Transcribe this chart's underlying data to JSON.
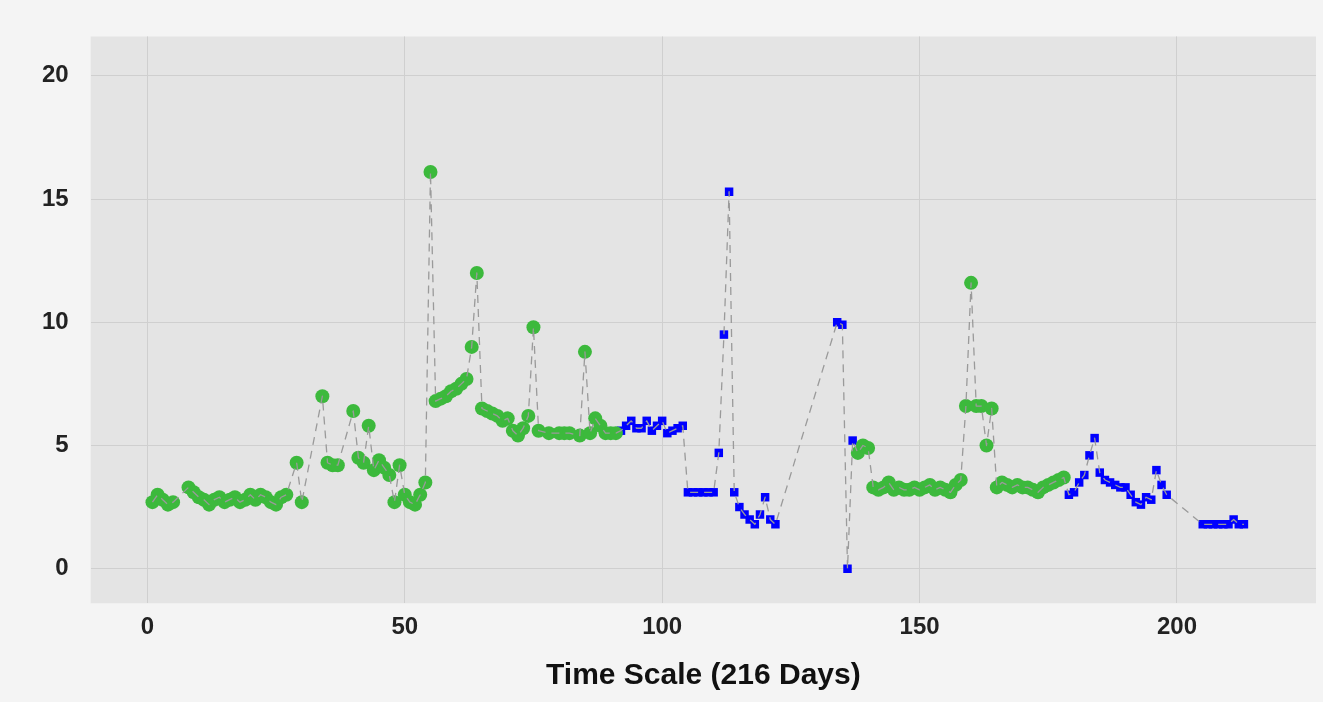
{
  "chart_data": {
    "type": "scatter",
    "xlabel": "Time Scale (216 Days)",
    "xlim": [
      -11,
      227
    ],
    "ylim": [
      -1.4,
      21.6
    ],
    "xticks": [
      0,
      50,
      100,
      150,
      200
    ],
    "yticks": [
      0,
      5,
      10,
      15,
      20
    ],
    "grid": true,
    "legend": false,
    "series": [
      {
        "type": "line",
        "color": "#9a9a9a",
        "line_style": "dashed",
        "marker": "none",
        "x": [
          1,
          2,
          3,
          4,
          5,
          8,
          9,
          10,
          11,
          12,
          13,
          14,
          15,
          16,
          17,
          18,
          19,
          20,
          21,
          22,
          23,
          24,
          25,
          26,
          27,
          29,
          30,
          34,
          35,
          36,
          37,
          40,
          41,
          42,
          43,
          44,
          45,
          46,
          47,
          48,
          49,
          50,
          51,
          52,
          53,
          54,
          55,
          56,
          57,
          58,
          59,
          60,
          61,
          62,
          63,
          64,
          65,
          66,
          67,
          68,
          69,
          70,
          71,
          72,
          73,
          74,
          75,
          76,
          78,
          80,
          81,
          82,
          84,
          85,
          86,
          87,
          88,
          89,
          90,
          91,
          92,
          93,
          94,
          95,
          96,
          97,
          98,
          99,
          100,
          101,
          102,
          103,
          104,
          105,
          106,
          107,
          108,
          109,
          110,
          111,
          112,
          113,
          114,
          115,
          116,
          117,
          118,
          119,
          120,
          121,
          122,
          134,
          135,
          136,
          137,
          138,
          139,
          140,
          141,
          142,
          143,
          144,
          145,
          146,
          147,
          148,
          149,
          150,
          151,
          152,
          153,
          154,
          155,
          156,
          157,
          158,
          159,
          160,
          161,
          162,
          163,
          164,
          165,
          166,
          167,
          168,
          169,
          170,
          171,
          172,
          173,
          174,
          175,
          176,
          177,
          178,
          179,
          180,
          181,
          182,
          183,
          184,
          185,
          186,
          187,
          188,
          189,
          190,
          191,
          192,
          193,
          194,
          195,
          196,
          197,
          198,
          205,
          206,
          207,
          208,
          209,
          210,
          211,
          212,
          213
        ],
        "values": [
          2.7,
          3.0,
          2.8,
          2.6,
          2.7,
          3.3,
          3.1,
          2.9,
          2.8,
          2.6,
          2.8,
          2.9,
          2.7,
          2.8,
          2.9,
          2.7,
          2.8,
          3.0,
          2.8,
          3.0,
          2.9,
          2.7,
          2.6,
          2.9,
          3.0,
          4.3,
          2.7,
          7.0,
          4.3,
          4.2,
          4.2,
          6.4,
          4.5,
          4.3,
          5.8,
          4.0,
          4.4,
          4.1,
          3.8,
          2.7,
          4.2,
          3.0,
          2.7,
          2.6,
          3.0,
          3.5,
          16.1,
          6.8,
          6.9,
          7.0,
          7.2,
          7.3,
          7.5,
          7.7,
          9.0,
          12.0,
          6.5,
          6.4,
          6.3,
          6.2,
          6.0,
          6.1,
          5.6,
          5.4,
          5.7,
          6.2,
          9.8,
          5.6,
          5.5,
          5.5,
          5.5,
          5.5,
          5.4,
          8.8,
          5.5,
          6.1,
          5.8,
          5.5,
          5.5,
          5.5,
          5.6,
          5.8,
          6.0,
          5.7,
          5.7,
          6.0,
          5.6,
          5.8,
          6.0,
          5.5,
          5.6,
          5.7,
          5.8,
          3.1,
          3.1,
          3.1,
          3.1,
          3.1,
          3.1,
          4.7,
          9.5,
          15.3,
          3.1,
          2.5,
          2.2,
          2.0,
          1.8,
          2.2,
          2.9,
          2.0,
          1.8,
          10.0,
          9.9,
          0,
          5.2,
          4.7,
          5.0,
          4.9,
          3.3,
          3.2,
          3.3,
          3.5,
          3.2,
          3.3,
          3.2,
          3.2,
          3.3,
          3.2,
          3.3,
          3.4,
          3.2,
          3.3,
          3.2,
          3.1,
          3.4,
          3.6,
          6.6,
          11.6,
          6.6,
          6.6,
          5.0,
          6.5,
          3.3,
          3.5,
          3.4,
          3.3,
          3.4,
          3.3,
          3.3,
          3.2,
          3.1,
          3.3,
          3.4,
          3.5,
          3.6,
          3.7,
          3.0,
          3.1,
          3.5,
          3.8,
          4.6,
          5.3,
          3.9,
          3.6,
          3.5,
          3.4,
          3.3,
          3.3,
          3.0,
          2.7,
          2.6,
          2.9,
          2.8,
          4.0,
          3.4,
          3.0,
          1.8,
          1.8,
          1.8,
          1.8,
          1.8,
          1.8,
          2.0,
          1.8,
          1.8
        ]
      },
      {
        "type": "scatter",
        "color": "#3cb93c",
        "marker": "circle",
        "x": [
          1,
          2,
          3,
          4,
          5,
          8,
          9,
          10,
          11,
          12,
          13,
          14,
          15,
          16,
          17,
          18,
          19,
          20,
          21,
          22,
          23,
          24,
          25,
          26,
          27,
          29,
          30,
          34,
          35,
          36,
          37,
          40,
          41,
          42,
          43,
          44,
          45,
          46,
          47,
          48,
          49,
          50,
          51,
          52,
          53,
          54,
          55,
          56,
          57,
          58,
          59,
          60,
          61,
          62,
          63,
          64,
          65,
          66,
          67,
          68,
          69,
          70,
          71,
          72,
          73,
          74,
          75,
          76,
          78,
          80,
          81,
          82,
          84,
          85,
          86,
          87,
          88,
          89,
          90,
          91,
          138,
          139,
          140,
          141,
          142,
          143,
          144,
          145,
          146,
          147,
          148,
          149,
          150,
          151,
          152,
          153,
          154,
          155,
          156,
          157,
          158,
          159,
          160,
          161,
          162,
          163,
          164,
          165,
          166,
          167,
          168,
          169,
          170,
          171,
          172,
          173,
          174,
          175,
          176,
          177,
          178
        ],
        "values": [
          2.7,
          3.0,
          2.8,
          2.6,
          2.7,
          3.3,
          3.1,
          2.9,
          2.8,
          2.6,
          2.8,
          2.9,
          2.7,
          2.8,
          2.9,
          2.7,
          2.8,
          3.0,
          2.8,
          3.0,
          2.9,
          2.7,
          2.6,
          2.9,
          3.0,
          4.3,
          2.7,
          7.0,
          4.3,
          4.2,
          4.2,
          6.4,
          4.5,
          4.3,
          5.8,
          4.0,
          4.4,
          4.1,
          3.8,
          2.7,
          4.2,
          3.0,
          2.7,
          2.6,
          3.0,
          3.5,
          16.1,
          6.8,
          6.9,
          7.0,
          7.2,
          7.3,
          7.5,
          7.7,
          9.0,
          12.0,
          6.5,
          6.4,
          6.3,
          6.2,
          6.0,
          6.1,
          5.6,
          5.4,
          5.7,
          6.2,
          9.8,
          5.6,
          5.5,
          5.5,
          5.5,
          5.5,
          5.4,
          8.8,
          5.5,
          6.1,
          5.8,
          5.5,
          5.5,
          5.5,
          4.7,
          5.0,
          4.9,
          3.3,
          3.2,
          3.3,
          3.5,
          3.2,
          3.3,
          3.2,
          3.2,
          3.3,
          3.2,
          3.3,
          3.4,
          3.2,
          3.3,
          3.2,
          3.1,
          3.4,
          3.6,
          6.6,
          11.6,
          6.6,
          6.6,
          5.0,
          6.5,
          3.3,
          3.5,
          3.4,
          3.3,
          3.4,
          3.3,
          3.3,
          3.2,
          3.1,
          3.3,
          3.4,
          3.5,
          3.6,
          3.7
        ]
      },
      {
        "type": "scatter",
        "color": "#0000ff",
        "marker": "square",
        "x": [
          92,
          93,
          94,
          95,
          96,
          97,
          98,
          99,
          100,
          101,
          102,
          103,
          104,
          105,
          106,
          107,
          108,
          109,
          110,
          111,
          112,
          113,
          114,
          115,
          116,
          117,
          118,
          119,
          120,
          121,
          122,
          134,
          135,
          136,
          137,
          179,
          180,
          181,
          182,
          183,
          184,
          185,
          186,
          187,
          188,
          189,
          190,
          191,
          192,
          193,
          194,
          195,
          196,
          197,
          198,
          205,
          206,
          207,
          208,
          209,
          210,
          211,
          212,
          213
        ],
        "values": [
          5.6,
          5.8,
          6.0,
          5.7,
          5.7,
          6.0,
          5.6,
          5.8,
          6.0,
          5.5,
          5.6,
          5.7,
          5.8,
          3.1,
          3.1,
          3.1,
          3.1,
          3.1,
          3.1,
          4.7,
          9.5,
          15.3,
          3.1,
          2.5,
          2.2,
          2.0,
          1.8,
          2.2,
          2.9,
          2.0,
          1.8,
          10.0,
          9.9,
          0,
          5.2,
          3.0,
          3.1,
          3.5,
          3.8,
          4.6,
          5.3,
          3.9,
          3.6,
          3.5,
          3.4,
          3.3,
          3.3,
          3.0,
          2.7,
          2.6,
          2.9,
          2.8,
          4.0,
          3.4,
          3.0,
          1.8,
          1.8,
          1.8,
          1.8,
          1.8,
          1.8,
          2.0,
          1.8,
          1.8
        ]
      }
    ]
  }
}
